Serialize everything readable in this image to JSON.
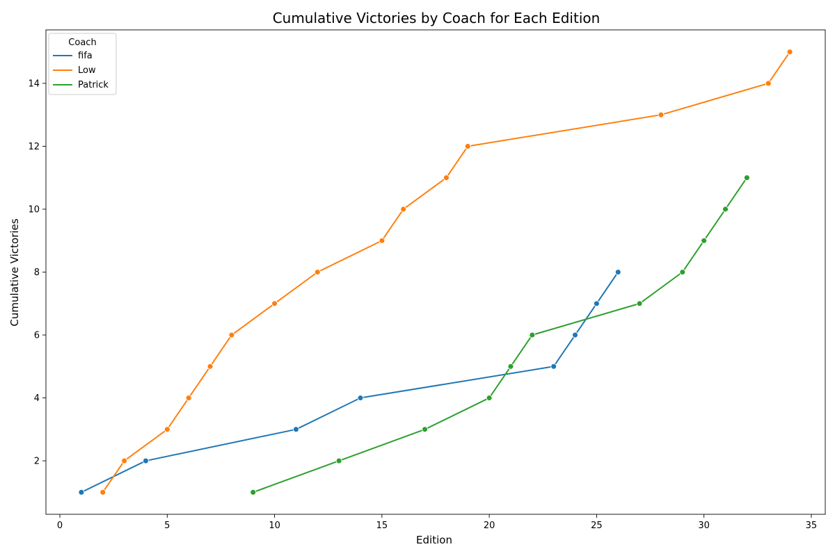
{
  "chart_data": {
    "type": "line",
    "title": "Cumulative Victories by Coach for Each Edition",
    "xlabel": "Edition",
    "ylabel": "Cumulative Victories",
    "xlim": [
      -0.65,
      35.65
    ],
    "ylim": [
      0.3,
      15.7
    ],
    "xticks": [
      0,
      5,
      10,
      15,
      20,
      25,
      30,
      35
    ],
    "yticks": [
      2,
      4,
      6,
      8,
      10,
      12,
      14
    ],
    "grid": false,
    "markers": true,
    "legend": {
      "title": "Coach",
      "position": "top-left"
    },
    "series": [
      {
        "name": "fifa",
        "color": "#1f77b4",
        "x": [
          1,
          4,
          11,
          14,
          23,
          24,
          25,
          26
        ],
        "y": [
          1,
          2,
          3,
          4,
          5,
          6,
          7,
          8
        ]
      },
      {
        "name": "Low",
        "color": "#ff7f0e",
        "x": [
          2,
          3,
          5,
          6,
          7,
          8,
          10,
          12,
          15,
          16,
          18,
          19,
          28,
          33,
          34
        ],
        "y": [
          1,
          2,
          3,
          4,
          5,
          6,
          7,
          8,
          9,
          10,
          11,
          12,
          13,
          14,
          15
        ]
      },
      {
        "name": "Patrick",
        "color": "#2ca02c",
        "x": [
          9,
          13,
          17,
          20,
          21,
          22,
          27,
          29,
          30,
          31,
          32
        ],
        "y": [
          1,
          2,
          3,
          4,
          5,
          6,
          7,
          8,
          9,
          10,
          11
        ]
      }
    ]
  }
}
